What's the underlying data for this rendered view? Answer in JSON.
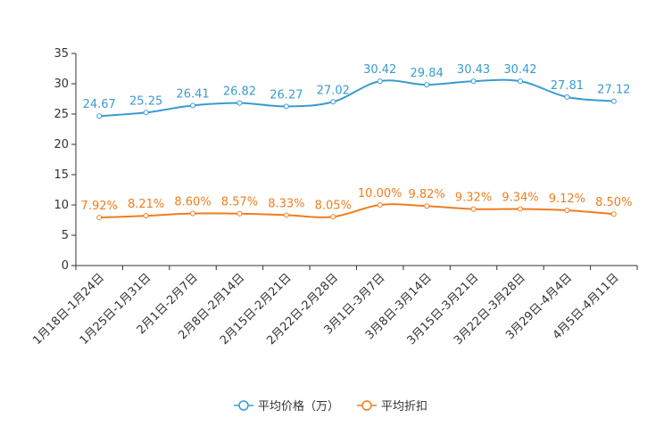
{
  "chart_data": {
    "type": "line",
    "title": "",
    "xlabel": "",
    "ylabel": "",
    "ylim": [
      0,
      35
    ],
    "yticks": [
      0,
      5,
      10,
      15,
      20,
      25,
      30,
      35
    ],
    "grid": false,
    "legend_position": "bottom-center",
    "categories": [
      "1月18日-1月24日",
      "1月25日-1月31日",
      "2月1日-2月7日",
      "2月8日-2月14日",
      "2月15日-2月21日",
      "2月22日-2月28日",
      "3月1日-3月7日",
      "3月8日-3月14日",
      "3月15日-3月21日",
      "3月22日-3月28日",
      "3月29日-4月4日",
      "4月5日-4月11日"
    ],
    "series": [
      {
        "name": "平均价格（万）",
        "color": "#3a9bd0",
        "values": [
          24.67,
          25.25,
          26.41,
          26.82,
          26.27,
          27.02,
          30.42,
          29.84,
          30.43,
          30.42,
          27.81,
          27.12
        ],
        "labels": [
          "24.67",
          "25.25",
          "26.41",
          "26.82",
          "26.27",
          "27.02",
          "30.42",
          "29.84",
          "30.43",
          "30.42",
          "27.81",
          "27.12"
        ]
      },
      {
        "name": "平均折扣",
        "color": "#f07d1f",
        "values": [
          7.92,
          8.21,
          8.6,
          8.57,
          8.33,
          8.05,
          10.0,
          9.82,
          9.32,
          9.34,
          9.12,
          8.5
        ],
        "labels": [
          "7.92%",
          "8.21%",
          "8.60%",
          "8.57%",
          "8.33%",
          "8.05%",
          "10.00%",
          "9.82%",
          "9.32%",
          "9.34%",
          "9.12%",
          "8.50%"
        ]
      }
    ]
  }
}
